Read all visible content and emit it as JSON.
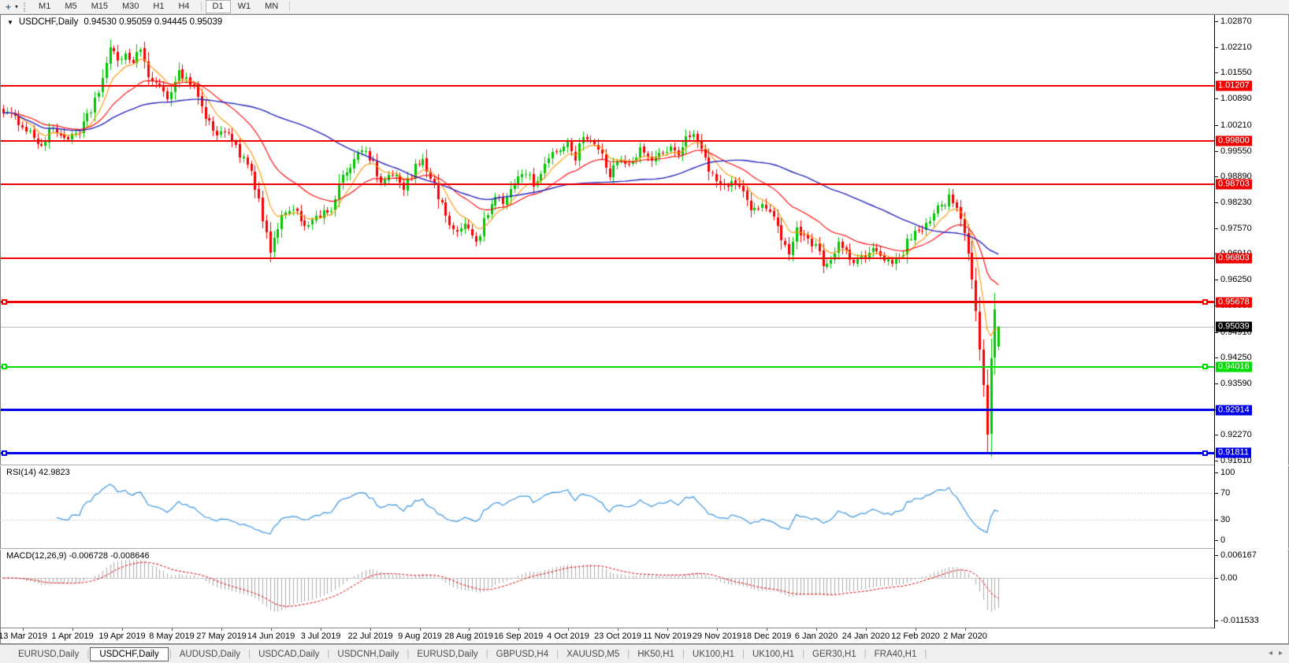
{
  "toolbar": {
    "timeframes": [
      "M1",
      "M5",
      "M15",
      "M30",
      "H1",
      "H4",
      "D1",
      "W1",
      "MN"
    ],
    "active_timeframe": "D1"
  },
  "chart": {
    "title_symbol": "USDCHF,Daily",
    "title_quotes": "0.94530 0.95059 0.94445 0.95039"
  },
  "indicators": {
    "rsi": {
      "label": "RSI(14) 42.9823"
    },
    "macd": {
      "label": "MACD(12,26,9) -0.006728 -0.008646"
    }
  },
  "price_axis": {
    "ticks": [
      "1.02870",
      "1.02210",
      "1.01550",
      "1.00890",
      "1.00210",
      "0.99550",
      "0.98890",
      "0.98230",
      "0.97570",
      "0.96910",
      "0.96250",
      "0.95590",
      "0.94910",
      "0.94250",
      "0.93590",
      "0.92930",
      "0.92270",
      "0.91610"
    ]
  },
  "x_axis": {
    "dates": [
      "13 Mar 2019",
      "1 Apr 2019",
      "19 Apr 2019",
      "8 May 2019",
      "27 May 2019",
      "14 Jun 2019",
      "3 Jul 2019",
      "22 Jul 2019",
      "9 Aug 2019",
      "28 Aug 2019",
      "16 Sep 2019",
      "4 Oct 2019",
      "23 Oct 2019",
      "11 Nov 2019",
      "29 Nov 2019",
      "18 Dec 2019",
      "6 Jan 2020",
      "24 Jan 2020",
      "12 Feb 2020",
      "2 Mar 2020"
    ]
  },
  "tabs": {
    "items": [
      "EURUSD,Daily",
      "USDCHF,Daily",
      "AUDUSD,Daily",
      "USDCAD,Daily",
      "USDCNH,Daily",
      "EURUSD,Daily",
      "GBPUSD,H4",
      "XAUUSD,M5",
      "HK50,H1",
      "UK100,H1",
      "UK100,H1",
      "GER30,H1",
      "FRA40,H1"
    ],
    "active_index": 1
  },
  "colors": {
    "candle_up": "#00c600",
    "candle_down": "#f40000",
    "axis_text": "#000000",
    "rsi_level_dash": "#c8c8c8",
    "macd_zero_line": "#c8c8c8"
  },
  "chart_data": {
    "type": "candlestick",
    "symbol": "USDCHF",
    "timeframe": "Daily",
    "current_bar": {
      "open": 0.9453,
      "high": 0.95059,
      "low": 0.94445,
      "close": 0.95039
    },
    "price_axis_range": {
      "max": 1.03031,
      "min": 0.91533
    },
    "n_candles": 262,
    "x_ticks": {
      "first_candle": 5,
      "step": 13
    },
    "price_path_anchors": [
      [
        0,
        1.0058
      ],
      [
        5,
        1.0022
      ],
      [
        10,
        0.9968
      ],
      [
        13,
        1.0014
      ],
      [
        16,
        0.9988
      ],
      [
        20,
        0.9998
      ],
      [
        23,
        1.006
      ],
      [
        26,
        1.014
      ],
      [
        28,
        1.0212
      ],
      [
        30,
        1.0188
      ],
      [
        32,
        1.0204
      ],
      [
        34,
        1.0178
      ],
      [
        36,
        1.0216
      ],
      [
        39,
        1.013
      ],
      [
        43,
        1.0095
      ],
      [
        46,
        1.0158
      ],
      [
        50,
        1.012
      ],
      [
        53,
        1.0042
      ],
      [
        56,
        0.9996
      ],
      [
        59,
        1.0006
      ],
      [
        62,
        0.9946
      ],
      [
        65,
        0.9898
      ],
      [
        68,
        0.9772
      ],
      [
        70,
        0.9698
      ],
      [
        73,
        0.9778
      ],
      [
        76,
        0.9812
      ],
      [
        79,
        0.9766
      ],
      [
        82,
        0.978
      ],
      [
        86,
        0.9808
      ],
      [
        88,
        0.9868
      ],
      [
        92,
        0.9928
      ],
      [
        94,
        0.996
      ],
      [
        97,
        0.9918
      ],
      [
        99,
        0.9868
      ],
      [
        102,
        0.9898
      ],
      [
        105,
        0.9855
      ],
      [
        108,
        0.9912
      ],
      [
        110,
        0.9938
      ],
      [
        113,
        0.9865
      ],
      [
        116,
        0.979
      ],
      [
        119,
        0.9742
      ],
      [
        121,
        0.977
      ],
      [
        124,
        0.9722
      ],
      [
        126,
        0.9772
      ],
      [
        129,
        0.9836
      ],
      [
        131,
        0.9822
      ],
      [
        134,
        0.9876
      ],
      [
        137,
        0.9902
      ],
      [
        139,
        0.9868
      ],
      [
        142,
        0.9916
      ],
      [
        145,
        0.9956
      ],
      [
        148,
        0.9976
      ],
      [
        150,
        0.9938
      ],
      [
        152,
        0.9996
      ],
      [
        154,
        0.9982
      ],
      [
        157,
        0.9942
      ],
      [
        159,
        0.9894
      ],
      [
        162,
        0.9936
      ],
      [
        164,
        0.9922
      ],
      [
        167,
        0.996
      ],
      [
        170,
        0.9928
      ],
      [
        172,
        0.9946
      ],
      [
        175,
        0.9964
      ],
      [
        177,
        0.9938
      ],
      [
        179,
        0.9986
      ],
      [
        181,
        1.0002
      ],
      [
        183,
        0.9968
      ],
      [
        186,
        0.9888
      ],
      [
        189,
        0.9862
      ],
      [
        191,
        0.9878
      ],
      [
        194,
        0.9848
      ],
      [
        196,
        0.9806
      ],
      [
        199,
        0.9816
      ],
      [
        202,
        0.9778
      ],
      [
        204,
        0.9738
      ],
      [
        206,
        0.9698
      ],
      [
        208,
        0.9752
      ],
      [
        210,
        0.974
      ],
      [
        213,
        0.9708
      ],
      [
        215,
        0.9666
      ],
      [
        217,
        0.9678
      ],
      [
        219,
        0.9716
      ],
      [
        221,
        0.9696
      ],
      [
        223,
        0.9666
      ],
      [
        225,
        0.9678
      ],
      [
        228,
        0.9706
      ],
      [
        230,
        0.9686
      ],
      [
        233,
        0.9666
      ],
      [
        235,
        0.968
      ],
      [
        237,
        0.9718
      ],
      [
        239,
        0.9746
      ],
      [
        241,
        0.974
      ],
      [
        243,
        0.9784
      ],
      [
        245,
        0.9812
      ],
      [
        247,
        0.9816
      ],
      [
        248,
        0.9838
      ],
      [
        250,
        0.9806
      ],
      [
        251,
        0.9784
      ],
      [
        252,
        0.9744
      ],
      [
        253,
        0.9688
      ],
      [
        254,
        0.9628
      ],
      [
        255,
        0.955
      ],
      [
        256,
        0.945
      ],
      [
        257,
        0.935
      ],
      [
        258,
        0.923
      ],
      [
        259,
        0.942
      ],
      [
        260,
        0.955
      ],
      [
        261,
        0.95039
      ]
    ],
    "spike_low": {
      "index": 258,
      "low": 0.9183
    },
    "horizontal_lines": [
      {
        "price": 1.01207,
        "label": "1.01207",
        "color": "#f20000",
        "width": 2,
        "selected": false
      },
      {
        "price": 0.998,
        "label": "0.99800",
        "color": "#f20000",
        "width": 2,
        "selected": false
      },
      {
        "price": 0.98703,
        "label": "0.98703",
        "color": "#f20000",
        "width": 2,
        "selected": false
      },
      {
        "price": 0.96803,
        "label": "0.96803",
        "color": "#f20000",
        "width": 2,
        "selected": false
      },
      {
        "price": 0.95678,
        "label": "0.95678",
        "color": "#f20000",
        "width": 3,
        "selected": true
      },
      {
        "price": 0.94016,
        "label": "0.94016",
        "color": "#00dd00",
        "width": 2,
        "selected": true
      },
      {
        "price": 0.92914,
        "label": "0.92914",
        "color": "#0000e8",
        "width": 3,
        "selected": false
      },
      {
        "price": 0.91811,
        "label": "0.91811",
        "color": "#0000e8",
        "width": 3,
        "selected": true
      }
    ],
    "current_price": {
      "price": 0.95039,
      "label": "0.95039",
      "line_color": "#bcbcbc",
      "label_bg": "#000000"
    },
    "moving_averages": [
      {
        "period": 8,
        "type": "ema",
        "color": "#ff9500"
      },
      {
        "period": 24,
        "type": "ema",
        "color": "#ff0000"
      },
      {
        "period": 60,
        "type": "sma",
        "color": "#2727c0"
      }
    ],
    "rsi": {
      "period": 14,
      "current": 42.9823,
      "line_color": "#3e96e0",
      "scale_ticks": [
        {
          "v": 100,
          "label": "100",
          "dashed": false
        },
        {
          "v": 70,
          "label": "70",
          "dashed": true
        },
        {
          "v": 30,
          "label": "30",
          "dashed": true
        },
        {
          "v": 0,
          "label": "0",
          "dashed": false
        }
      ]
    },
    "macd": {
      "fast": 12,
      "slow": 26,
      "signal": 9,
      "current": -0.006728,
      "signal_current": -0.008646,
      "hist_color": "#ababab",
      "signal_color": "#e00000",
      "scale_ticks": [
        {
          "v": 0.006167,
          "label": "0.006167"
        },
        {
          "v": 0,
          "label": "0.00"
        },
        {
          "v": -0.011533,
          "label": "-0.011533"
        }
      ]
    }
  }
}
